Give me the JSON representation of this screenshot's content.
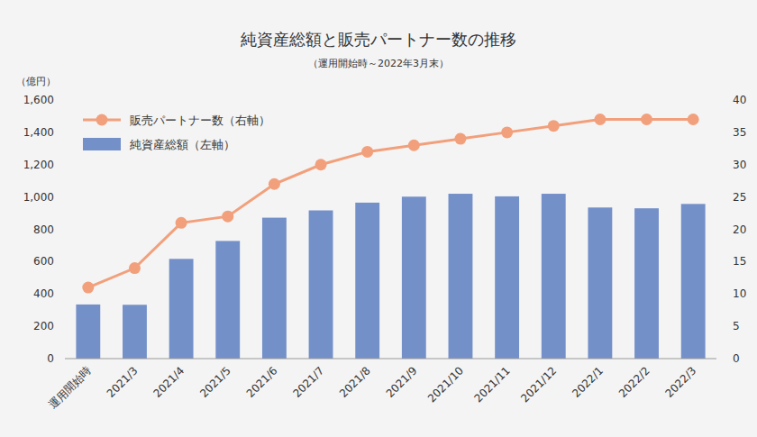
{
  "chart_data": {
    "type": "bar",
    "title": "純資産総額と販売パートナー数の推移",
    "subtitle": "（運用開始時～2022年3月末）",
    "y_label": "（億円）",
    "categories": [
      "運用開始時",
      "2021/3",
      "2021/4",
      "2021/5",
      "2021/6",
      "2021/7",
      "2021/8",
      "2021/9",
      "2021/10",
      "2021/11",
      "2021/12",
      "2022/1",
      "2022/2",
      "2022/3"
    ],
    "series": [
      {
        "name": "純資産総額（左軸）",
        "type": "bar",
        "color": "#7490c9",
        "values": [
          335,
          333,
          617,
          728,
          872,
          917,
          965,
          1002,
          1020,
          1004,
          1020,
          935,
          930,
          957
        ]
      },
      {
        "name": "販売パートナー数（右軸）",
        "type": "line",
        "axis": "y2",
        "color": "#f2a07c",
        "marker": "circle",
        "line_style": "solid",
        "values": [
          11,
          14,
          21,
          22,
          27,
          30,
          32,
          33,
          34,
          35,
          36,
          37,
          37,
          37
        ]
      }
    ],
    "ylim": [
      0,
      1600
    ],
    "yticks": [
      0,
      200,
      400,
      600,
      800,
      {
        "value": 1000,
        "label": "1,000"
      },
      {
        "value": 1200,
        "label": "1,200"
      },
      {
        "value": 1400,
        "label": "1,400"
      },
      {
        "value": 1600,
        "label": "1,600"
      }
    ],
    "y2lim": [
      0,
      40
    ],
    "y2ticks": [
      0,
      5,
      10,
      15,
      20,
      25,
      30,
      35,
      40
    ],
    "grid": false,
    "legend": "upper-left"
  }
}
